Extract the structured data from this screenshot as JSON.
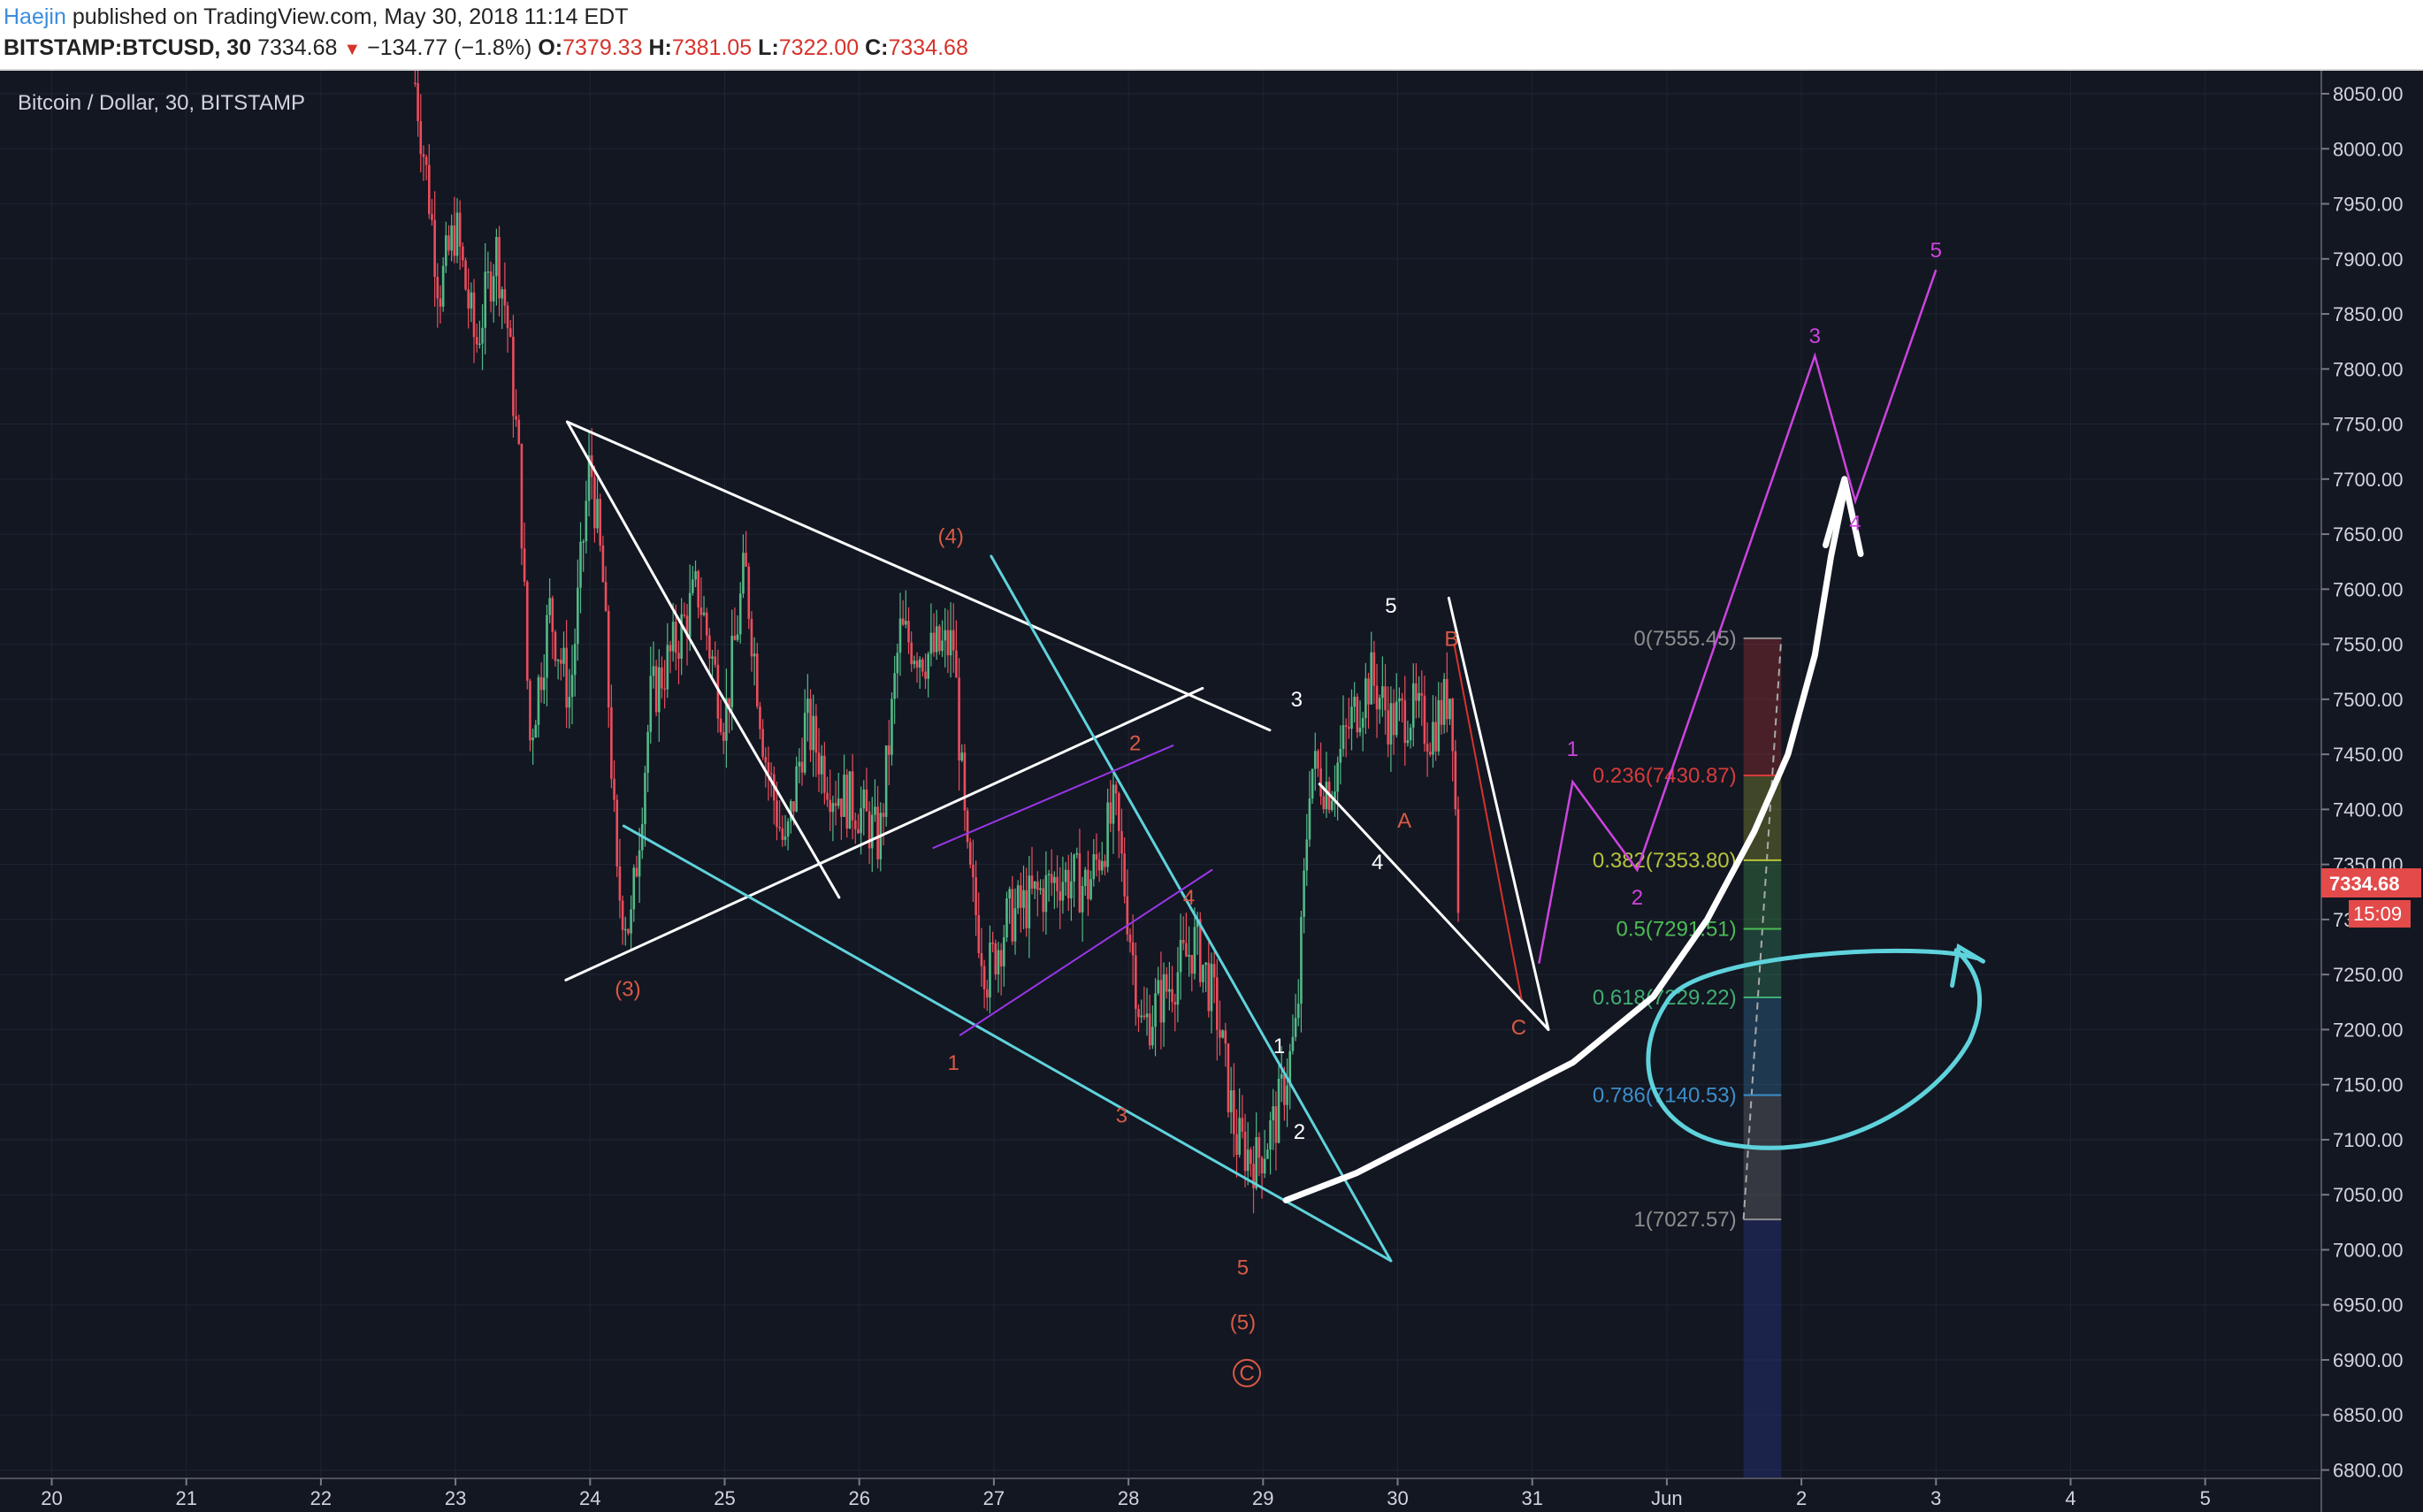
{
  "header": {
    "author": "Haejin",
    "published_text": "published on TradingView.com, May 30, 2018 11:14 EDT",
    "symbol": "BITSTAMP:BTCUSD, 30",
    "last": "7334.68",
    "change": "−134.77 (−1.8%)",
    "o_label": "O:",
    "o_value": "7379.33",
    "h_label": "H:",
    "h_value": "7381.05",
    "l_label": "L:",
    "l_value": "7322.00",
    "c_label": "C:",
    "c_value": "7334.68"
  },
  "colors": {
    "background": "#131722",
    "up_candle": "#53b987",
    "down_candle": "#eb4d5c",
    "trendline_white": "#ffffff",
    "trendline_cyan": "#5fd3dc",
    "channel_purple": "#9a36e8",
    "projection_magenta": "#cc44dd",
    "wave_label_red": "#d95a45"
  },
  "chart_data": {
    "type": "candlestick",
    "title": "Bitcoin / Dollar, 30, BITSTAMP",
    "timeframe": "30",
    "x_ticks": [
      "20",
      "21",
      "22",
      "23",
      "24",
      "25",
      "26",
      "27",
      "28",
      "29",
      "30",
      "31",
      "Jun",
      "2",
      "3",
      "4",
      "5"
    ],
    "y_ticks": [
      "8050.00",
      "8000.00",
      "7950.00",
      "7900.00",
      "7850.00",
      "7800.00",
      "7750.00",
      "7700.00",
      "7650.00",
      "7600.00",
      "7550.00",
      "7500.00",
      "7450.00",
      "7400.00",
      "7350.00",
      "7300.00",
      "7250.00",
      "7200.00",
      "7150.00",
      "7100.00",
      "7050.00",
      "7000.00",
      "6950.00",
      "6900.00",
      "6850.00",
      "6800.00"
    ],
    "ylim": [
      6800,
      8060
    ],
    "last_price": "7334.68",
    "countdown": "15:09",
    "price_path": [
      {
        "x": 22.7,
        "y": 8060
      },
      {
        "x": 22.8,
        "y": 7960
      },
      {
        "x": 22.88,
        "y": 7870
      },
      {
        "x": 23.0,
        "y": 7930
      },
      {
        "x": 23.15,
        "y": 7820
      },
      {
        "x": 23.3,
        "y": 7910
      },
      {
        "x": 23.38,
        "y": 7850
      },
      {
        "x": 23.48,
        "y": 7700
      },
      {
        "x": 23.55,
        "y": 7460
      },
      {
        "x": 23.7,
        "y": 7580
      },
      {
        "x": 23.85,
        "y": 7500
      },
      {
        "x": 24.0,
        "y": 7720
      },
      {
        "x": 24.1,
        "y": 7600
      },
      {
        "x": 24.2,
        "y": 7330
      },
      {
        "x": 24.3,
        "y": 7290
      },
      {
        "x": 24.45,
        "y": 7500
      },
      {
        "x": 24.6,
        "y": 7540
      },
      {
        "x": 24.8,
        "y": 7600
      },
      {
        "x": 25.0,
        "y": 7480
      },
      {
        "x": 25.15,
        "y": 7620
      },
      {
        "x": 25.3,
        "y": 7450
      },
      {
        "x": 25.45,
        "y": 7360
      },
      {
        "x": 25.6,
        "y": 7480
      },
      {
        "x": 25.8,
        "y": 7420
      },
      {
        "x": 26.0,
        "y": 7400
      },
      {
        "x": 26.15,
        "y": 7370
      },
      {
        "x": 26.3,
        "y": 7560
      },
      {
        "x": 26.5,
        "y": 7540
      },
      {
        "x": 26.7,
        "y": 7550
      },
      {
        "x": 26.8,
        "y": 7350
      },
      {
        "x": 26.95,
        "y": 7250
      },
      {
        "x": 27.1,
        "y": 7300
      },
      {
        "x": 27.3,
        "y": 7320
      },
      {
        "x": 27.5,
        "y": 7340
      },
      {
        "x": 27.7,
        "y": 7330
      },
      {
        "x": 27.9,
        "y": 7400
      },
      {
        "x": 28.0,
        "y": 7300
      },
      {
        "x": 28.1,
        "y": 7200
      },
      {
        "x": 28.3,
        "y": 7240
      },
      {
        "x": 28.5,
        "y": 7280
      },
      {
        "x": 28.65,
        "y": 7220
      },
      {
        "x": 28.8,
        "y": 7100
      },
      {
        "x": 28.95,
        "y": 7080
      },
      {
        "x": 29.1,
        "y": 7120
      },
      {
        "x": 29.25,
        "y": 7200
      },
      {
        "x": 29.35,
        "y": 7440
      },
      {
        "x": 29.5,
        "y": 7420
      },
      {
        "x": 29.65,
        "y": 7480
      },
      {
        "x": 29.8,
        "y": 7520
      },
      {
        "x": 29.95,
        "y": 7480
      },
      {
        "x": 30.1,
        "y": 7490
      },
      {
        "x": 30.25,
        "y": 7470
      },
      {
        "x": 30.4,
        "y": 7510
      },
      {
        "x": 30.45,
        "y": 7320
      }
    ],
    "elliott_labels_red": [
      {
        "text": "(4)",
        "x": 26.68,
        "y": 7648
      },
      {
        "text": "(3)",
        "x": 24.28,
        "y": 7237
      },
      {
        "text": "1",
        "x": 26.7,
        "y": 7170
      },
      {
        "text": "2",
        "x": 28.05,
        "y": 7460
      },
      {
        "text": "3",
        "x": 27.95,
        "y": 7122
      },
      {
        "text": "4",
        "x": 28.45,
        "y": 7320
      },
      {
        "text": "5",
        "x": 28.85,
        "y": 6984
      },
      {
        "text": "(5)",
        "x": 28.85,
        "y": 6934
      },
      {
        "text": "C",
        "x": 28.88,
        "y": 6888
      },
      {
        "text": "A",
        "x": 30.05,
        "y": 7390
      },
      {
        "text": "B",
        "x": 30.4,
        "y": 7555
      },
      {
        "text": "C",
        "x": 30.9,
        "y": 7202
      }
    ],
    "elliott_labels_white": [
      {
        "text": "5",
        "x": 29.95,
        "y": 7585
      },
      {
        "text": "3",
        "x": 29.25,
        "y": 7500
      },
      {
        "text": "4",
        "x": 29.85,
        "y": 7352
      },
      {
        "text": "1",
        "x": 29.12,
        "y": 7185
      },
      {
        "text": "2",
        "x": 29.27,
        "y": 7107
      }
    ],
    "elliott_labels_magenta": [
      {
        "text": "1",
        "x": 31.3,
        "y": 7455
      },
      {
        "text": "2",
        "x": 31.78,
        "y": 7320
      },
      {
        "text": "3",
        "x": 33.1,
        "y": 7830
      },
      {
        "text": "4",
        "x": 33.4,
        "y": 7660
      },
      {
        "text": "5",
        "x": 34.0,
        "y": 7908
      }
    ],
    "projection_path": [
      {
        "x": 31.05,
        "y": 7260
      },
      {
        "x": 31.3,
        "y": 7425
      },
      {
        "x": 31.78,
        "y": 7345
      },
      {
        "x": 33.1,
        "y": 7812
      },
      {
        "x": 33.4,
        "y": 7680
      },
      {
        "x": 34.0,
        "y": 7890
      }
    ],
    "fibonacci": [
      {
        "label": "0(7555.45)",
        "ratio": "0",
        "price": 7555.45,
        "color": "#8e8e8e"
      },
      {
        "label": "0.236(7430.87)",
        "ratio": "0.236",
        "price": 7430.87,
        "color": "#d63b3b"
      },
      {
        "label": "0.382(7353.80)",
        "ratio": "0.382",
        "price": 7353.8,
        "color": "#b6c33b"
      },
      {
        "label": "0.5(7291.51)",
        "ratio": "0.5",
        "price": 7291.51,
        "color": "#4dbb55"
      },
      {
        "label": "0.618(7229.22)",
        "ratio": "0.618",
        "price": 7229.22,
        "color": "#3fae73"
      },
      {
        "label": "0.786(7140.53)",
        "ratio": "0.786",
        "price": 7140.53,
        "color": "#3d8ec9"
      },
      {
        "label": "1(7027.57)",
        "ratio": "1",
        "price": 7027.57,
        "color": "#8e8e8e"
      }
    ]
  }
}
